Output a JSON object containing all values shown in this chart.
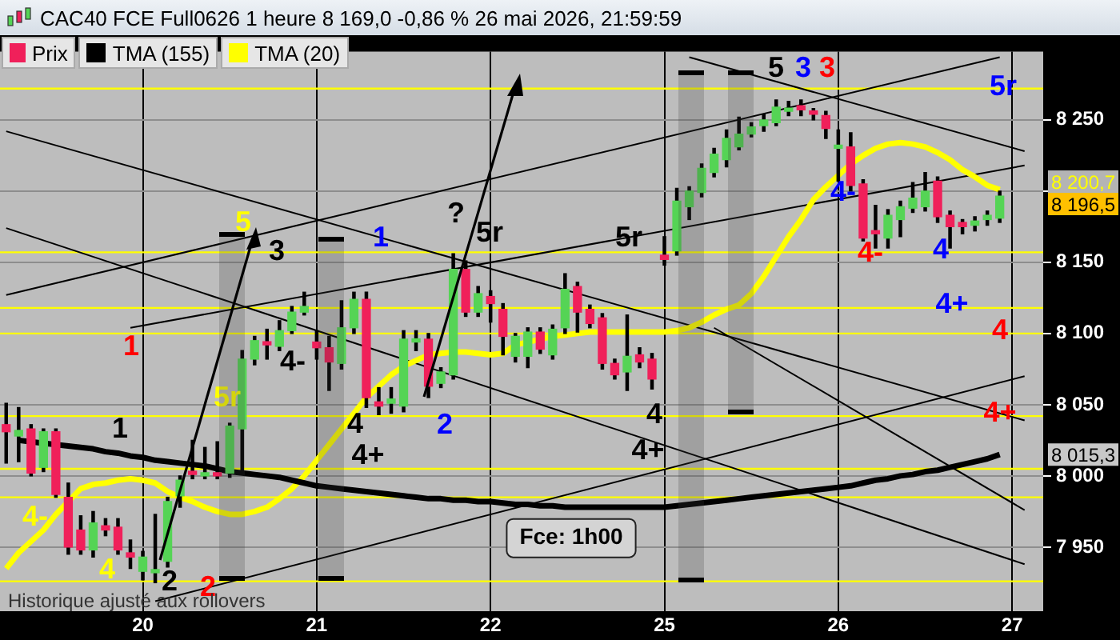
{
  "chart_data": {
    "type": "candlestick",
    "title": "CAC40 FCE Full0626 1 heure 8 169,0 -0,86 % 26 mai 2026, 21:59:59",
    "categories": [
      null,
      null,
      null,
      null,
      null,
      null,
      null,
      null,
      null,
      null,
      null,
      "20",
      null,
      null,
      null,
      null,
      null,
      null,
      null,
      null,
      null,
      null,
      null,
      null,
      null,
      "21",
      null,
      null,
      null,
      null,
      null,
      null,
      null,
      null,
      null,
      null,
      null,
      null,
      null,
      "22",
      null,
      null,
      null,
      null,
      null,
      null,
      null,
      null,
      null,
      null,
      null,
      null,
      null,
      "25",
      null,
      null,
      null,
      null,
      null,
      null,
      null,
      null,
      null,
      null,
      null,
      null,
      null,
      "26",
      null,
      null,
      null,
      null,
      null,
      null,
      null,
      null,
      null,
      null,
      null,
      null,
      null,
      "27",
      null,
      null
    ],
    "ylim": [
      7905,
      8298
    ],
    "yticks": [
      {
        "value": 7950,
        "label": "7 950"
      },
      {
        "value": 8000,
        "label": "8 000"
      },
      {
        "value": 8050,
        "label": "8 050"
      },
      {
        "value": 8100,
        "label": "8 100"
      },
      {
        "value": 8150,
        "label": "8 150"
      },
      {
        "value": 8200,
        "label": null
      },
      {
        "value": 8250,
        "label": "8 250"
      }
    ],
    "grid": true,
    "legend": "top left",
    "series": [
      {
        "name": "Prix",
        "type": "candlestick",
        "colors": [
          "#f0205a",
          "#55d455",
          "#f0205a",
          "#55d455",
          "#f0205a",
          "#f0205a",
          "#f0205a",
          "#55d455",
          "#f0205a",
          "#f0205a",
          "#f0205a",
          "#55d455",
          "#55d455",
          "#55d455",
          "#55d455",
          "#f0205a",
          "#55d455",
          "#f0205a",
          "#55d455",
          "#55d455",
          "#55d455",
          "#f0205a",
          "#55d455",
          "#55d455",
          "#55d455",
          "#f0205a",
          "#f0205a",
          "#55d455",
          "#55d455",
          "#f0205a",
          "#f0205a",
          "#55d455",
          "#55d455",
          "#55d455",
          "#f0205a",
          "#55d455",
          "#55d455",
          "#f0205a",
          "#55d455",
          "#f0205a",
          "#f0205a",
          "#55d455",
          "#55d455",
          "#f0205a",
          "#55d455",
          "#55d455",
          "#f0205a",
          "#f0205a",
          "#f0205a",
          "#f0205a",
          "#55d455",
          "#f0205a",
          "#f0205a",
          "#f0205a",
          "#55d455",
          "#55d455",
          "#55d455",
          "#55d455",
          "#55d455",
          "#55d455",
          "#55d455",
          "#55d455",
          "#55d455",
          "#55d455",
          "#f0205a",
          "#f0205a",
          "#f0205a",
          "#55d455",
          "#f0205a",
          "#f0205a",
          "#f0205a",
          "#55d455",
          "#55d455",
          "#55d455",
          "#55d455",
          "#f0205a",
          "#f0205a",
          "#f0205a",
          "#55d455",
          "#55d455",
          "#55d455",
          null,
          null,
          null
        ],
        "ohlc": [
          [
            8036,
            8051,
            8009,
            8031
          ],
          [
            8028,
            8048,
            8010,
            8032
          ],
          [
            8033,
            8036,
            8000,
            8002
          ],
          [
            8006,
            8033,
            8003,
            8031
          ],
          [
            8031,
            8033,
            7985,
            7987
          ],
          [
            7985,
            7995,
            7945,
            7950
          ],
          [
            7962,
            7972,
            7945,
            7948
          ],
          [
            7948,
            7975,
            7943,
            7967
          ],
          [
            7965,
            7970,
            7958,
            7962
          ],
          [
            7964,
            7970,
            7945,
            7948
          ],
          [
            7946,
            7955,
            7935,
            7943
          ],
          [
            7933,
            7947,
            7927,
            7943
          ],
          [
            7932,
            7973,
            7925,
            7934
          ],
          [
            7940,
            7985,
            7936,
            7982
          ],
          [
            7986,
            8000,
            7978,
            7997
          ],
          [
            8003,
            8025,
            7998,
            8001
          ],
          [
            8000,
            8020,
            7998,
            8001
          ],
          [
            8002,
            8024,
            7998,
            8000
          ],
          [
            8002,
            8037,
            7999,
            8035
          ],
          [
            8033,
            8088,
            8002,
            8082
          ],
          [
            8082,
            8098,
            8078,
            8095
          ],
          [
            8093,
            8103,
            8082,
            8092
          ],
          [
            8091,
            8109,
            8088,
            8102
          ],
          [
            8102,
            8119,
            8100,
            8115
          ],
          [
            8115,
            8129,
            8113,
            8119
          ],
          [
            8094,
            8102,
            8082,
            8090
          ],
          [
            8090,
            8098,
            8060,
            8080
          ],
          [
            8079,
            8123,
            8075,
            8104
          ],
          [
            8104,
            8129,
            8100,
            8124
          ],
          [
            8124,
            8129,
            8048,
            8055
          ],
          [
            8052,
            8062,
            8043,
            8049
          ],
          [
            8051,
            8062,
            8044,
            8054
          ],
          [
            8049,
            8102,
            8045,
            8096
          ],
          [
            8094,
            8102,
            8088,
            8096
          ],
          [
            8096,
            8100,
            8055,
            8063
          ],
          [
            8065,
            8076,
            8062,
            8073
          ],
          [
            8071,
            8156,
            8068,
            8145
          ],
          [
            8145,
            8151,
            8112,
            8115
          ],
          [
            8115,
            8133,
            8112,
            8128
          ],
          [
            8126,
            8130,
            8108,
            8121
          ],
          [
            8117,
            8121,
            8085,
            8098
          ],
          [
            8084,
            8100,
            8080,
            8098
          ],
          [
            8084,
            8104,
            8076,
            8101
          ],
          [
            8101,
            8104,
            8086,
            8089
          ],
          [
            8085,
            8106,
            8082,
            8103
          ],
          [
            8104,
            8142,
            8100,
            8131
          ],
          [
            8133,
            8136,
            8101,
            8115
          ],
          [
            8117,
            8120,
            8104,
            8107
          ],
          [
            8111,
            8114,
            8075,
            8079
          ],
          [
            8079,
            8082,
            8068,
            8071
          ],
          [
            8073,
            8113,
            8060,
            8084
          ],
          [
            8085,
            8090,
            8076,
            8080
          ],
          [
            8082,
            8086,
            8061,
            8068
          ],
          [
            8155,
            8168,
            8148,
            8152
          ],
          [
            8158,
            8202,
            8155,
            8193
          ],
          [
            8189,
            8203,
            8180,
            8200
          ],
          [
            8199,
            8219,
            8196,
            8216
          ],
          [
            8213,
            8230,
            8210,
            8226
          ],
          [
            8222,
            8243,
            8217,
            8237
          ],
          [
            8231,
            8252,
            8229,
            8240
          ],
          [
            8240,
            8248,
            8238,
            8245
          ],
          [
            8246,
            8254,
            8242,
            8250
          ],
          [
            8248,
            8264,
            8246,
            8259
          ],
          [
            8256,
            8263,
            8253,
            8258
          ],
          [
            8260,
            8264,
            8253,
            8257
          ],
          [
            8256,
            8258,
            8250,
            8254
          ],
          [
            8253,
            8256,
            8237,
            8244
          ],
          [
            8230,
            8243,
            8207,
            8232
          ],
          [
            8231,
            8241,
            8200,
            8204
          ],
          [
            8205,
            8208,
            8165,
            8167
          ],
          [
            8172,
            8190,
            8160,
            8170
          ],
          [
            8167,
            8187,
            8160,
            8183
          ],
          [
            8180,
            8193,
            8168,
            8189
          ],
          [
            8188,
            8206,
            8185,
            8195
          ],
          [
            8189,
            8213,
            8186,
            8200
          ],
          [
            8207,
            8210,
            8178,
            8182
          ],
          [
            8183,
            8186,
            8160,
            8175
          ],
          [
            8178,
            8180,
            8170,
            8175
          ],
          [
            8176,
            8182,
            8172,
            8179
          ],
          [
            8180,
            8186,
            8176,
            8183
          ],
          [
            8181,
            8200,
            8178,
            8196.5
          ],
          null,
          null,
          null
        ]
      },
      {
        "name": "TMA (155)",
        "type": "line",
        "color": "#000000",
        "values": [
          null,
          8025,
          8024,
          8023,
          8022,
          8021,
          8020,
          8019,
          8017,
          8016,
          8014,
          8013,
          8011,
          8010,
          8009,
          8008,
          8007,
          8005,
          8003,
          8002,
          8001,
          8000,
          7999,
          7997,
          7995,
          7993,
          7992,
          7991,
          7990,
          7989,
          7988,
          7987,
          7986,
          7985,
          7984,
          7984,
          7983,
          7983,
          7982,
          7982,
          7981,
          7980,
          7980,
          7979,
          7979,
          7978,
          7978,
          7978,
          7978,
          7978,
          7978,
          7978,
          7978,
          7978,
          7979,
          7980,
          7981,
          7982,
          7983,
          7984,
          7985,
          7986,
          7987,
          7988,
          7989,
          7990,
          7991,
          7992,
          7993,
          7995,
          7997,
          7998,
          8000,
          8001,
          8003,
          8004,
          8006,
          8008,
          8010,
          8012,
          8015,
          null,
          null,
          null
        ]
      },
      {
        "name": "TMA (20)",
        "type": "line",
        "color": "#ffff00",
        "values": [
          7935,
          7946,
          7954,
          7962,
          7973,
          7982,
          7991,
          7994,
          7995,
          7997,
          7998,
          7997,
          7995,
          7989,
          7985,
          7982,
          7978,
          7975,
          7973,
          7973,
          7975,
          7978,
          7984,
          7991,
          8000,
          8011,
          8022,
          8033,
          8044,
          8055,
          8063,
          8071,
          8077,
          8081,
          8085,
          8086,
          8087,
          8087,
          8086,
          8085,
          8086,
          8092,
          8094,
          8096,
          8098,
          8099,
          8100,
          8101,
          8101,
          8101,
          8101,
          8101,
          8101,
          8101,
          8102,
          8104,
          8108,
          8113,
          8117,
          8120,
          8128,
          8140,
          8154,
          8168,
          8180,
          8194,
          8203,
          8211,
          8219,
          8225,
          8230,
          8233,
          8234,
          8233,
          8231,
          8227,
          8222,
          8215,
          8210,
          8204,
          8201,
          null,
          null,
          null
        ]
      },
      {
        "type": "line",
        "color": "#000000",
        "values": [
          8242,
          null,
          null,
          null,
          null,
          null,
          null,
          null,
          null,
          null,
          null,
          null,
          null,
          null,
          null,
          null,
          null,
          null,
          null,
          null,
          null,
          null,
          null,
          null,
          null,
          null,
          null,
          null,
          null,
          null,
          null,
          null,
          null,
          null,
          null,
          null,
          null,
          null,
          null,
          null,
          null,
          null,
          null,
          null,
          null,
          null,
          null,
          null,
          null,
          null,
          null,
          null,
          null,
          null,
          null,
          null,
          null,
          null,
          null,
          null,
          null,
          null,
          null,
          null,
          null,
          null,
          null,
          null,
          null,
          null,
          null,
          null,
          null,
          null,
          null,
          null,
          null,
          null,
          null,
          null,
          null,
          null,
          8039,
          null
        ]
      },
      {
        "type": "line",
        "color": "#000000",
        "values": [
          8174,
          null,
          null,
          null,
          null,
          null,
          null,
          null,
          null,
          null,
          null,
          null,
          null,
          null,
          null,
          null,
          null,
          null,
          null,
          null,
          null,
          null,
          null,
          null,
          null,
          null,
          null,
          null,
          null,
          null,
          null,
          null,
          null,
          null,
          null,
          null,
          null,
          null,
          null,
          null,
          null,
          null,
          null,
          null,
          null,
          null,
          null,
          null,
          null,
          null,
          null,
          null,
          null,
          null,
          null,
          null,
          null,
          null,
          null,
          null,
          null,
          null,
          null,
          null,
          null,
          null,
          null,
          null,
          null,
          null,
          null,
          null,
          null,
          null,
          null,
          null,
          null,
          null,
          null,
          null,
          null,
          null,
          7938,
          null
        ]
      },
      {
        "type": "line",
        "color": "#000000",
        "values": [
          8127,
          null,
          null,
          null,
          null,
          null,
          null,
          null,
          null,
          null,
          null,
          null,
          null,
          null,
          null,
          null,
          null,
          null,
          null,
          null,
          null,
          null,
          null,
          null,
          null,
          null,
          null,
          null,
          null,
          null,
          null,
          null,
          null,
          null,
          null,
          null,
          null,
          null,
          null,
          null,
          null,
          null,
          null,
          null,
          null,
          null,
          null,
          null,
          null,
          null,
          null,
          null,
          null,
          null,
          null,
          null,
          null,
          null,
          null,
          null,
          null,
          null,
          null,
          null,
          null,
          null,
          null,
          null,
          null,
          null,
          null,
          null,
          null,
          null,
          null,
          null,
          null,
          null,
          null,
          null,
          8294,
          null,
          null,
          null
        ]
      },
      {
        "type": "line",
        "color": "#000000",
        "values": [
          null,
          null,
          null,
          null,
          null,
          null,
          null,
          null,
          null,
          null,
          8104,
          null,
          null,
          null,
          null,
          null,
          null,
          null,
          null,
          null,
          null,
          null,
          null,
          null,
          null,
          null,
          null,
          null,
          null,
          null,
          null,
          null,
          null,
          null,
          null,
          null,
          null,
          null,
          null,
          null,
          null,
          null,
          null,
          null,
          null,
          null,
          null,
          null,
          null,
          null,
          null,
          null,
          null,
          null,
          null,
          null,
          null,
          null,
          null,
          null,
          null,
          null,
          null,
          null,
          null,
          null,
          null,
          null,
          null,
          null,
          null,
          null,
          null,
          null,
          null,
          null,
          null,
          null,
          null,
          null,
          null,
          null,
          8218,
          null
        ]
      },
      {
        "type": "line",
        "color": "#000000",
        "values": [
          null,
          null,
          null,
          null,
          null,
          null,
          null,
          null,
          null,
          null,
          null,
          null,
          7912,
          null,
          null,
          null,
          null,
          null,
          null,
          null,
          null,
          null,
          null,
          null,
          null,
          null,
          null,
          null,
          null,
          null,
          null,
          null,
          null,
          null,
          null,
          null,
          null,
          null,
          null,
          null,
          null,
          null,
          null,
          null,
          null,
          null,
          null,
          null,
          null,
          null,
          null,
          null,
          null,
          null,
          null,
          null,
          null,
          null,
          null,
          null,
          null,
          null,
          null,
          null,
          null,
          null,
          null,
          null,
          null,
          null,
          null,
          null,
          null,
          null,
          null,
          null,
          null,
          null,
          null,
          null,
          null,
          null,
          8070,
          null
        ]
      },
      {
        "type": "line",
        "color": "#000000",
        "values": [
          null,
          null,
          null,
          null,
          null,
          null,
          null,
          null,
          null,
          null,
          null,
          null,
          null,
          null,
          null,
          null,
          null,
          null,
          null,
          null,
          null,
          null,
          null,
          null,
          null,
          null,
          null,
          null,
          null,
          null,
          null,
          null,
          null,
          null,
          null,
          null,
          null,
          null,
          null,
          null,
          null,
          null,
          null,
          null,
          null,
          null,
          null,
          null,
          null,
          null,
          null,
          null,
          null,
          null,
          null,
          null,
          null,
          8104,
          null,
          null,
          null,
          null,
          null,
          null,
          null,
          null,
          null,
          null,
          null,
          null,
          null,
          null,
          null,
          null,
          null,
          null,
          null,
          null,
          null,
          null,
          null,
          null,
          7976,
          null
        ]
      },
      {
        "type": "line",
        "color": "#000000",
        "values": [
          null,
          null,
          null,
          null,
          null,
          null,
          null,
          null,
          null,
          null,
          null,
          null,
          null,
          null,
          null,
          null,
          null,
          null,
          null,
          null,
          null,
          null,
          null,
          null,
          null,
          null,
          null,
          null,
          null,
          null,
          null,
          null,
          null,
          null,
          null,
          null,
          null,
          null,
          null,
          null,
          null,
          null,
          null,
          null,
          null,
          null,
          null,
          null,
          null,
          null,
          null,
          null,
          null,
          null,
          null,
          8294,
          null,
          null,
          null,
          null,
          null,
          null,
          null,
          null,
          null,
          null,
          null,
          null,
          null,
          null,
          null,
          null,
          null,
          null,
          null,
          null,
          null,
          null,
          null,
          null,
          null,
          null,
          8228,
          null
        ]
      }
    ],
    "ref_lines": [
      {
        "axis": "y",
        "value": 8272,
        "color": "#ffff00"
      },
      {
        "axis": "y",
        "value": 8157,
        "color": "#ffff00"
      },
      {
        "axis": "y",
        "value": 8118,
        "color": "#ffff00"
      },
      {
        "axis": "y",
        "value": 8100,
        "color": "#ffff00"
      },
      {
        "axis": "y",
        "value": 8042,
        "color": "#ffff00"
      },
      {
        "axis": "y",
        "value": 8005,
        "color": "#ffff00"
      },
      {
        "axis": "y",
        "value": 7985,
        "color": "#ffff00"
      },
      {
        "axis": "y",
        "value": 7926,
        "color": "#ffff00"
      }
    ],
    "annotations": [
      {
        "text": "5",
        "y": 8157
      },
      {
        "text": "3",
        "y": 8157
      },
      "1",
      "?",
      "5r",
      "1",
      "4-",
      "5r",
      "1",
      "4",
      {
        "text": "2",
        "y": 8042
      },
      "4+",
      "4-",
      "4",
      {
        "text": "2",
        "y": 7925
      },
      "2",
      "5r",
      "5",
      "3",
      "3",
      "5r",
      "4-",
      "4-",
      "4",
      "4+",
      "4",
      "4",
      "4+",
      "4+",
      "Fce: 1h00",
      "Historique ajusté aux rollovers",
      "8 200,7",
      "8 196,5",
      "8 015,3"
    ]
  }
}
